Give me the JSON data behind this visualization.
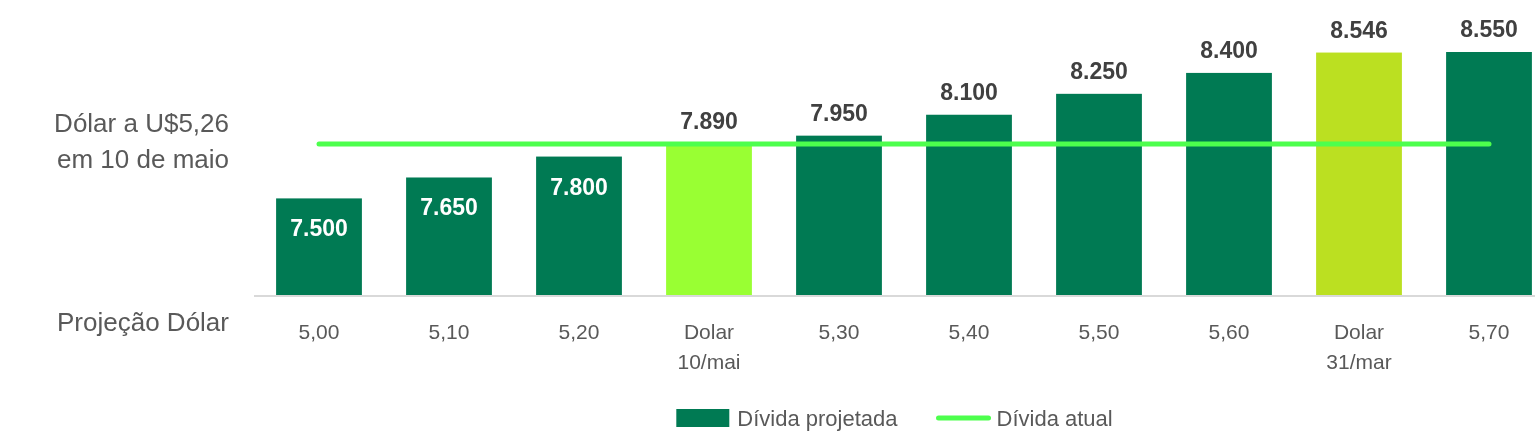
{
  "chart_data": {
    "type": "bar",
    "xlabel": "Projeção Dólar",
    "categories": [
      "5,00",
      "5,10",
      "5,20",
      "Dolar 10/mai",
      "5,30",
      "5,40",
      "5,50",
      "5,60",
      "Dolar 31/mar",
      "5,70"
    ],
    "series": [
      {
        "name": "Dívida projetada",
        "color": "#007a53",
        "colors": [
          "#007a53",
          "#007a53",
          "#007a53",
          "#99ff33",
          "#007a53",
          "#007a53",
          "#007a53",
          "#007a53",
          "#bbe021",
          "#007a53"
        ],
        "values": [
          7500,
          7650,
          7800,
          7890,
          7950,
          8100,
          8250,
          8400,
          8546,
          8550
        ],
        "value_labels": [
          "7.500",
          "7.650",
          "7.800",
          "7.890",
          "7.950",
          "8.100",
          "8.250",
          "8.400",
          "8.546",
          "8.550"
        ]
      },
      {
        "name": "Dívida atual",
        "type": "line",
        "color": "#4dff4d",
        "values": [
          7890,
          7890,
          7890,
          7890,
          7890,
          7890,
          7890,
          7890,
          7890,
          7890
        ]
      }
    ],
    "ylim": [
      6800,
      8550
    ],
    "tick_labels": "x",
    "legend": "bottom",
    "annotations": [
      "Dólar a U$5,26\nem 10 de maio"
    ]
  }
}
